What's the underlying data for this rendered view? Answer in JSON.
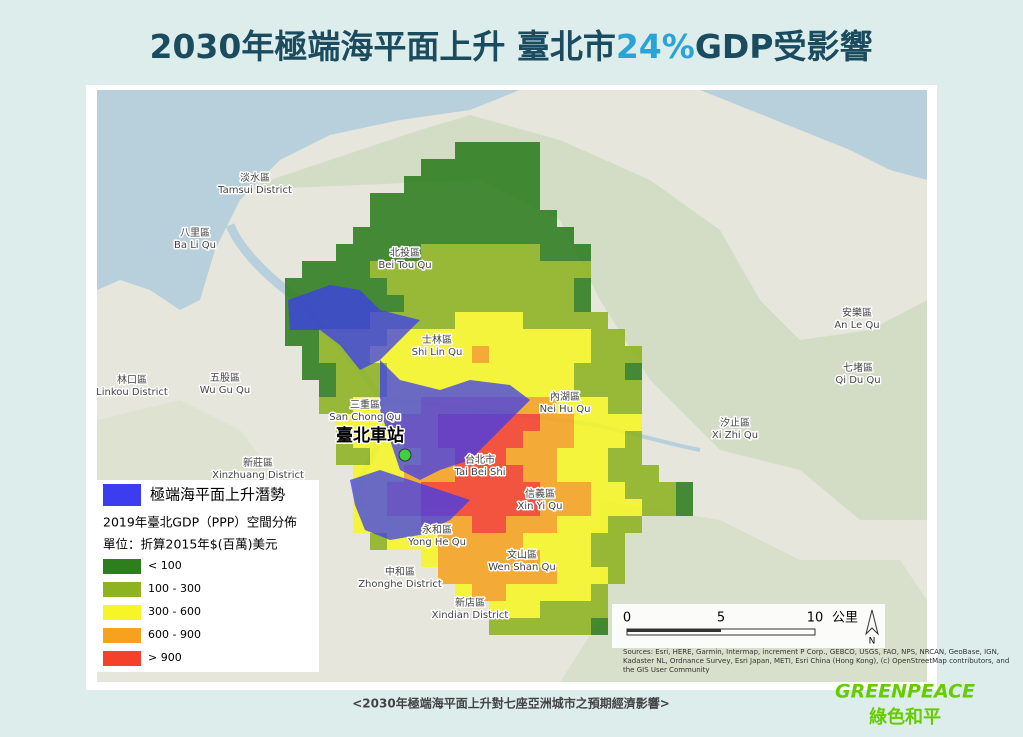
{
  "header": {
    "title_start": "2030年極端海平面上升 臺北市",
    "title_highlight": "24%",
    "title_end": "GDP受影響"
  },
  "map": {
    "station": "臺北車站",
    "flood_legend": "極端海平面上升潛勢",
    "gdp_legend_title": "2019年臺北GDP（PPP）空間分佈",
    "gdp_legend_unit": "單位：折算2015年$(百萬)美元",
    "gdp_classes": [
      {
        "label": "< 100",
        "color": "#2e7d1e"
      },
      {
        "label": "100 - 300",
        "color": "#8db321"
      },
      {
        "label": "300 - 600",
        "color": "#f6f626"
      },
      {
        "label": "600 - 900",
        "color": "#f7a21f"
      },
      {
        "label": "> 900",
        "color": "#f5402a"
      }
    ],
    "flood_color": "#3c3cf0",
    "scale": {
      "ticks": [
        "0",
        "5",
        "10"
      ],
      "unit": "公里"
    },
    "north": "N",
    "sources": [
      "Sources: Esri, HERE, Garmin, Intermap, increment P Corp., GEBCO, USGS, FAO, NPS, NRCAN, GeoBase, IGN,",
      "Kadaster NL, Ordnance Survey, Esri Japan, METI, Esri China (Hong Kong), (c) OpenStreetMap contributors, and",
      "the GIS User Community"
    ],
    "places": [
      {
        "zh": "淡水區",
        "en": "Tamsui District"
      },
      {
        "zh": "八里區",
        "en": "Ba Li Qu"
      },
      {
        "zh": "北投區",
        "en": "Bei Tou Qu"
      },
      {
        "zh": "士林區",
        "en": "Shi Lin Qu"
      },
      {
        "zh": "內湖區",
        "en": "Nei Hu Qu"
      },
      {
        "zh": "三重區",
        "en": "San Chong Qu"
      },
      {
        "zh": "台北市",
        "en": "Tai Bei Shi"
      },
      {
        "zh": "信義區",
        "en": "Xin Yi Qu"
      },
      {
        "zh": "永和區",
        "en": "Yong He Qu"
      },
      {
        "zh": "文山區",
        "en": "Wen Shan Qu"
      },
      {
        "zh": "中和區",
        "en": "Zhonghe District"
      },
      {
        "zh": "新店區",
        "en": "Xindian District"
      },
      {
        "zh": "新莊區",
        "en": "Xinzhuang District"
      },
      {
        "zh": "五股區",
        "en": "Wu Gu Qu"
      },
      {
        "zh": "林口區",
        "en": "Linkou District"
      },
      {
        "zh": "汐止區",
        "en": "Xi Zhi Qu"
      },
      {
        "zh": "安樂區",
        "en": "An Le Qu"
      },
      {
        "zh": "七堵區",
        "en": "Qi Du Qu"
      }
    ]
  },
  "footer": {
    "caption": "<2030年極端海平面上升對七座亞洲城市之預期經濟影響>",
    "logo": "GREENPEACE",
    "logo_zh": "綠色和平"
  }
}
